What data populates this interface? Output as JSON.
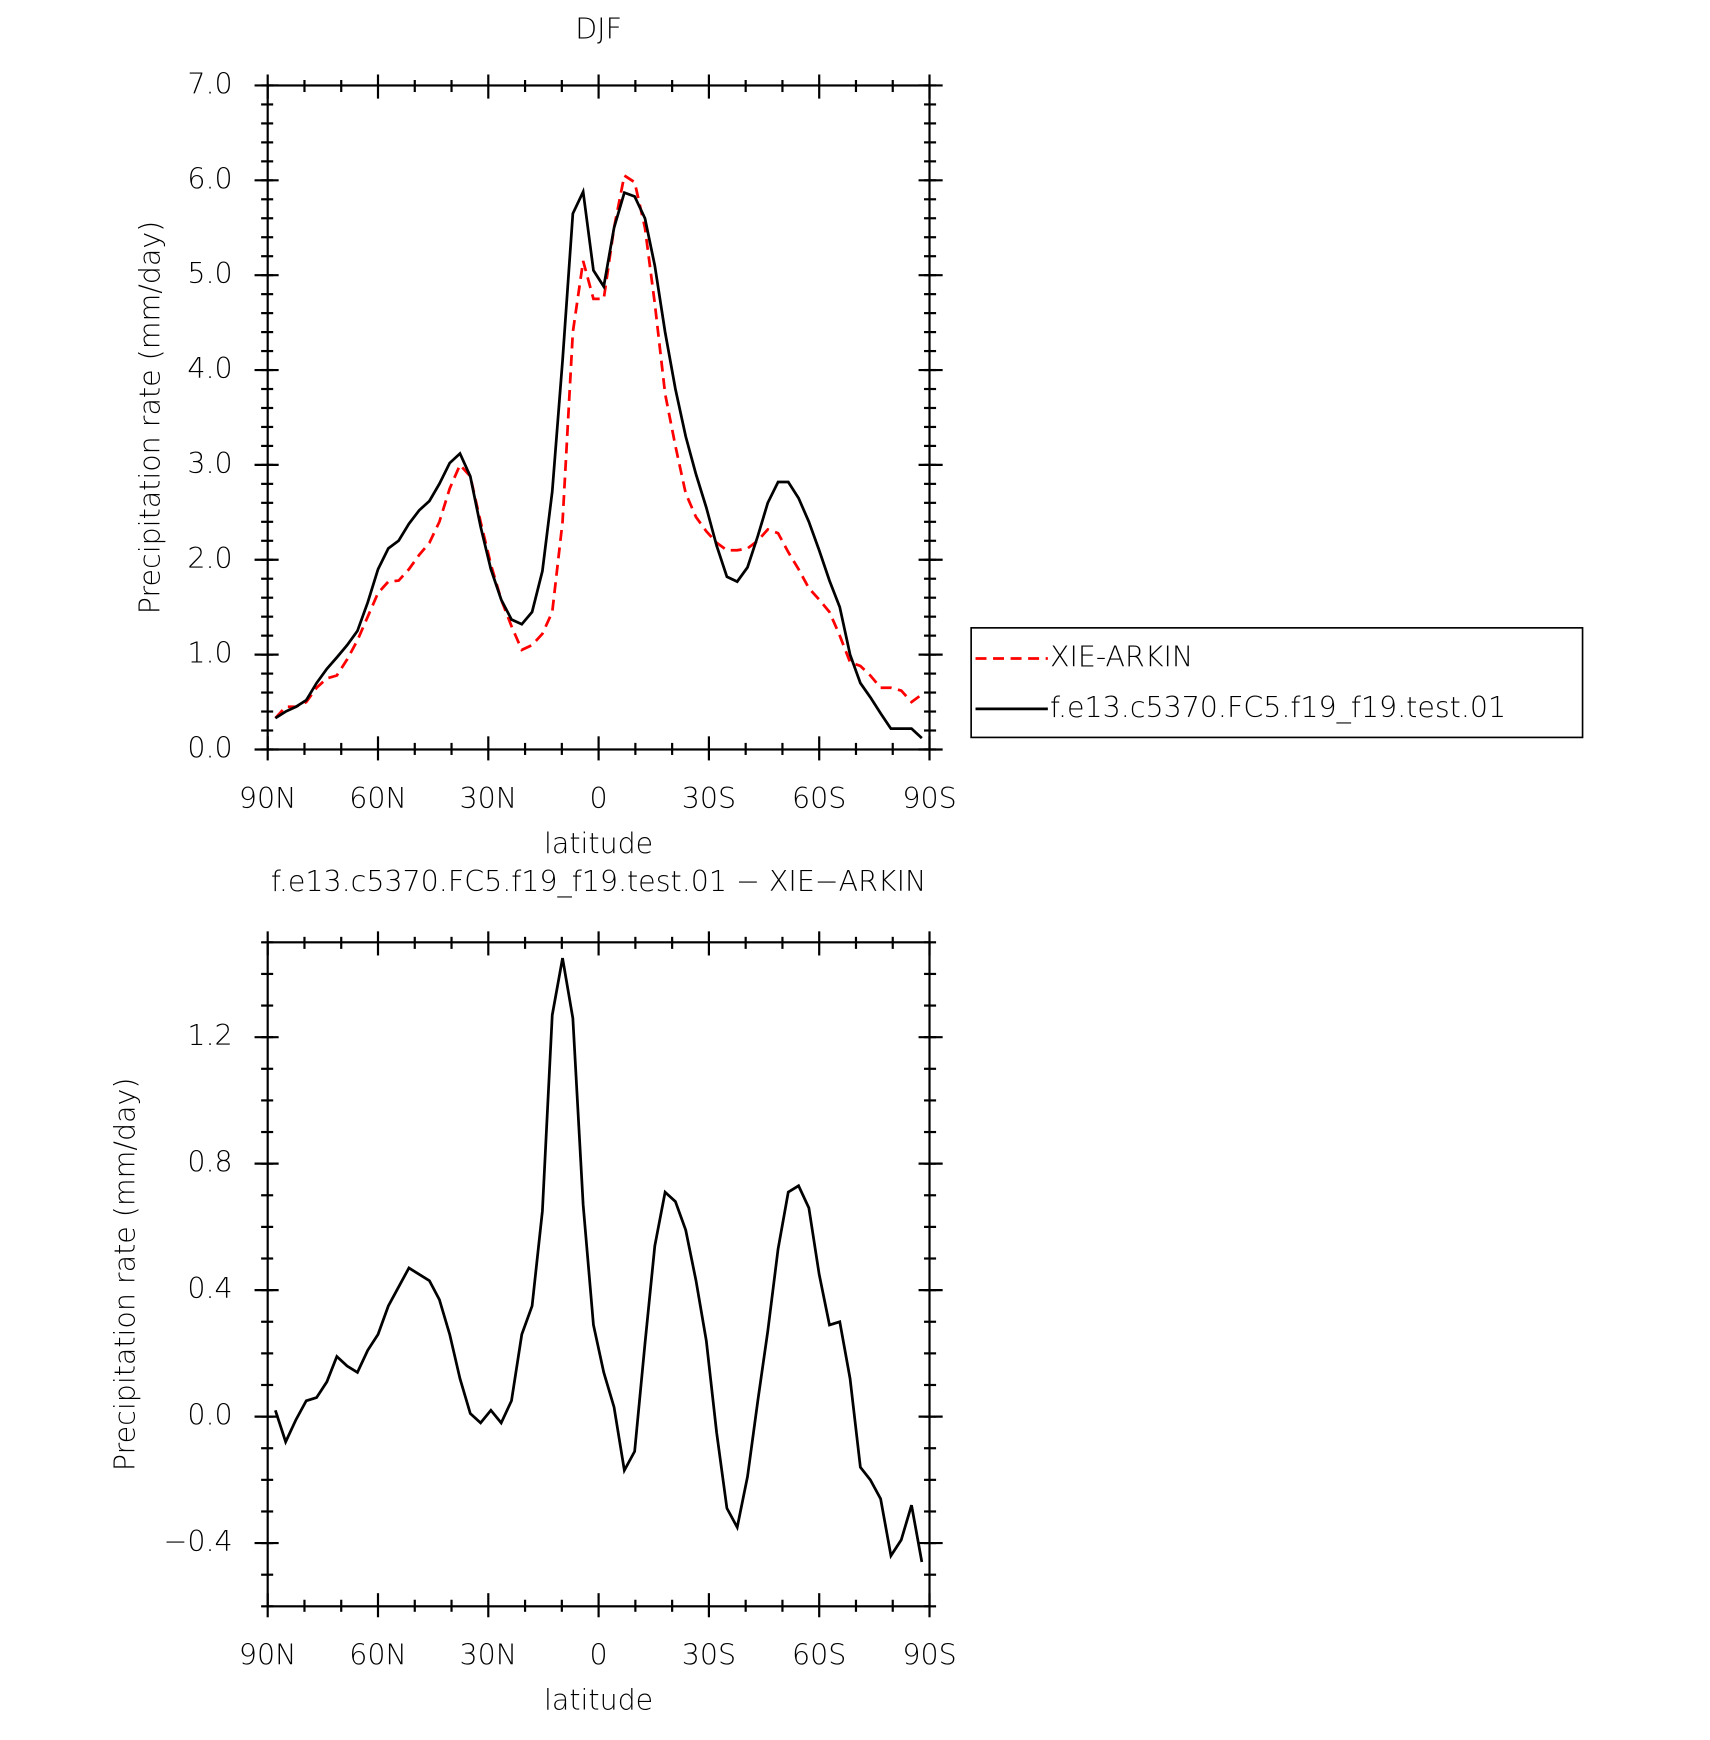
{
  "chart_data": [
    {
      "type": "line",
      "title": "DJF",
      "xlabel": "latitude",
      "ylabel": "Precipitation rate (mm/day)",
      "x": [
        87.9,
        85.1,
        82.3,
        79.5,
        76.7,
        73.9,
        71.2,
        68.4,
        65.6,
        62.8,
        60.0,
        57.2,
        54.4,
        51.6,
        48.8,
        46.0,
        43.3,
        40.5,
        37.7,
        34.9,
        32.1,
        29.3,
        26.5,
        23.7,
        20.9,
        18.1,
        15.3,
        12.6,
        9.8,
        7.0,
        4.2,
        1.4,
        -1.4,
        -4.2,
        -7.0,
        -9.8,
        -12.6,
        -15.3,
        -18.1,
        -20.9,
        -23.7,
        -26.5,
        -29.3,
        -32.1,
        -34.9,
        -37.7,
        -40.5,
        -43.3,
        -46.0,
        -48.8,
        -51.6,
        -54.4,
        -57.2,
        -60.0,
        -62.8,
        -65.6,
        -68.4,
        -71.2,
        -73.9,
        -76.7,
        -79.5,
        -82.3,
        -85.1,
        -87.9
      ],
      "series": [
        {
          "name": "XIE-ARKIN",
          "color": "#ff0000",
          "linestyle": "dashed",
          "values": [
            0.33,
            0.45,
            0.45,
            0.5,
            0.65,
            0.75,
            0.78,
            0.95,
            1.15,
            1.4,
            1.65,
            1.77,
            1.78,
            1.9,
            2.05,
            2.18,
            2.4,
            2.75,
            3.0,
            2.88,
            2.4,
            1.95,
            1.58,
            1.3,
            1.05,
            1.1,
            1.22,
            1.45,
            2.4,
            4.4,
            5.15,
            4.75,
            4.75,
            5.5,
            6.05,
            5.98,
            5.5,
            4.7,
            3.75,
            3.2,
            2.7,
            2.45,
            2.3,
            2.18,
            2.1,
            2.1,
            2.12,
            2.2,
            2.32,
            2.28,
            2.08,
            1.9,
            1.7,
            1.58,
            1.45,
            1.2,
            0.92,
            0.88,
            0.78,
            0.65,
            0.65,
            0.62,
            0.5,
            0.58
          ]
        },
        {
          "name": "f.e13.c5370.FC5.f19_f19.test.01",
          "color": "#000000",
          "linestyle": "solid",
          "values": [
            0.33,
            0.4,
            0.45,
            0.52,
            0.7,
            0.85,
            0.97,
            1.1,
            1.25,
            1.55,
            1.9,
            2.12,
            2.2,
            2.38,
            2.52,
            2.62,
            2.8,
            3.02,
            3.12,
            2.88,
            2.35,
            1.9,
            1.58,
            1.37,
            1.32,
            1.45,
            1.88,
            2.72,
            4.1,
            5.65,
            5.88,
            5.05,
            4.88,
            5.5,
            5.87,
            5.83,
            5.6,
            5.1,
            4.4,
            3.8,
            3.3,
            2.9,
            2.55,
            2.15,
            1.82,
            1.77,
            1.92,
            2.25,
            2.6,
            2.82,
            2.82,
            2.65,
            2.4,
            2.1,
            1.78,
            1.5,
            1.0,
            0.7,
            0.55,
            0.38,
            0.22,
            0.22,
            0.22,
            0.12
          ]
        }
      ],
      "xlim": [
        90,
        -90
      ],
      "xticks": [
        {
          "value": 90,
          "label": "90N"
        },
        {
          "value": 60,
          "label": "60N"
        },
        {
          "value": 30,
          "label": "30N"
        },
        0,
        {
          "value": -30,
          "label": "30S"
        },
        {
          "value": -60,
          "label": "60S"
        },
        {
          "value": -90,
          "label": "90S"
        }
      ],
      "ylim": [
        0,
        7
      ],
      "yticks": [
        {
          "value": 0,
          "label": "0.0"
        },
        {
          "value": 1,
          "label": "1.0"
        },
        {
          "value": 2,
          "label": "2.0"
        },
        {
          "value": 3,
          "label": "3.0"
        },
        {
          "value": 4,
          "label": "4.0"
        },
        {
          "value": 5,
          "label": "5.0"
        },
        {
          "value": 6,
          "label": "6.0"
        },
        {
          "value": 7,
          "label": "7.0"
        }
      ],
      "legend": "outside right"
    },
    {
      "type": "line",
      "title": "f.e13.c5370.FC5.f19_f19.test.01 − XIE−ARKIN",
      "xlabel": "latitude",
      "ylabel": "Precipitation rate (mm/day)",
      "x": [
        87.9,
        85.1,
        82.3,
        79.5,
        76.7,
        73.9,
        71.2,
        68.4,
        65.6,
        62.8,
        60.0,
        57.2,
        54.4,
        51.6,
        48.8,
        46.0,
        43.3,
        40.5,
        37.7,
        34.9,
        32.1,
        29.3,
        26.5,
        23.7,
        20.9,
        18.1,
        15.3,
        12.6,
        9.8,
        7.0,
        4.2,
        1.4,
        -1.4,
        -4.2,
        -7.0,
        -9.8,
        -12.6,
        -15.3,
        -18.1,
        -20.9,
        -23.7,
        -26.5,
        -29.3,
        -32.1,
        -34.9,
        -37.7,
        -40.5,
        -43.3,
        -46.0,
        -48.8,
        -51.6,
        -54.4,
        -57.2,
        -60.0,
        -62.8,
        -65.6,
        -68.4,
        -71.2,
        -73.9,
        -76.7,
        -79.5,
        -82.3,
        -85.1,
        -87.9
      ],
      "color": "#000000",
      "values": [
        0.02,
        -0.08,
        -0.01,
        0.05,
        0.06,
        0.11,
        0.19,
        0.16,
        0.14,
        0.21,
        0.26,
        0.35,
        0.41,
        0.47,
        0.45,
        0.43,
        0.37,
        0.26,
        0.12,
        0.01,
        -0.02,
        0.02,
        -0.02,
        0.05,
        0.26,
        0.35,
        0.65,
        1.27,
        1.45,
        1.26,
        0.67,
        0.29,
        0.14,
        0.03,
        -0.17,
        -0.11,
        0.23,
        0.54,
        0.71,
        0.68,
        0.59,
        0.43,
        0.24,
        -0.05,
        -0.29,
        -0.35,
        -0.19,
        0.05,
        0.27,
        0.53,
        0.71,
        0.73,
        0.66,
        0.45,
        0.29,
        0.3,
        0.12,
        -0.16,
        -0.2,
        -0.26,
        -0.44,
        -0.39,
        -0.28,
        -0.46
      ],
      "xlim": [
        90,
        -90
      ],
      "xticks": [
        {
          "value": 90,
          "label": "90N"
        },
        {
          "value": 60,
          "label": "60N"
        },
        {
          "value": 30,
          "label": "30N"
        },
        0,
        {
          "value": -30,
          "label": "30S"
        },
        {
          "value": -60,
          "label": "60S"
        },
        {
          "value": -90,
          "label": "90S"
        }
      ],
      "ylim": [
        -0.6,
        1.5
      ],
      "yticks": [
        {
          "value": -0.4,
          "label": "−0.4"
        },
        {
          "value": 0,
          "label": "0.0"
        },
        0.4,
        0.8,
        1.2
      ]
    }
  ]
}
